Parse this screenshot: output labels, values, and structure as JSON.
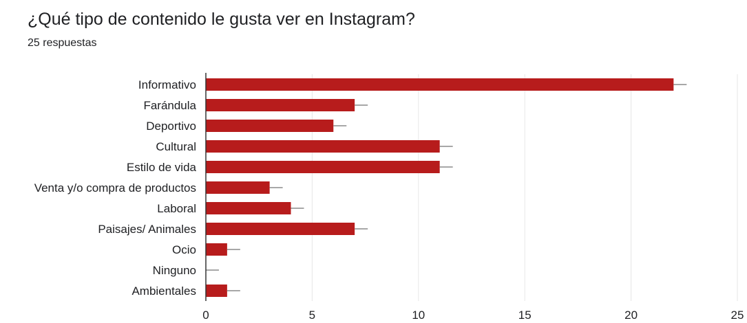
{
  "header": {
    "question": "¿Qué tipo de contenido le gusta ver en Instagram?",
    "responses": "25 respuestas"
  },
  "chart_data": {
    "type": "bar",
    "orientation": "horizontal",
    "categories": [
      "Informativo",
      "Farándula",
      "Deportivo",
      "Cultural",
      "Estilo de vida",
      "Venta y/o compra de productos",
      "Laboral",
      "Paisajes/ Animales",
      "Ocio",
      "Ninguno",
      "Ambientales"
    ],
    "values": [
      22,
      7,
      6,
      11,
      11,
      3,
      4,
      7,
      1,
      0,
      1
    ],
    "xlim": [
      0,
      25
    ],
    "xticks": [
      0,
      5,
      10,
      15,
      20,
      25
    ],
    "grid": true,
    "error_bars": true,
    "bar_color": "#b71c1c"
  }
}
